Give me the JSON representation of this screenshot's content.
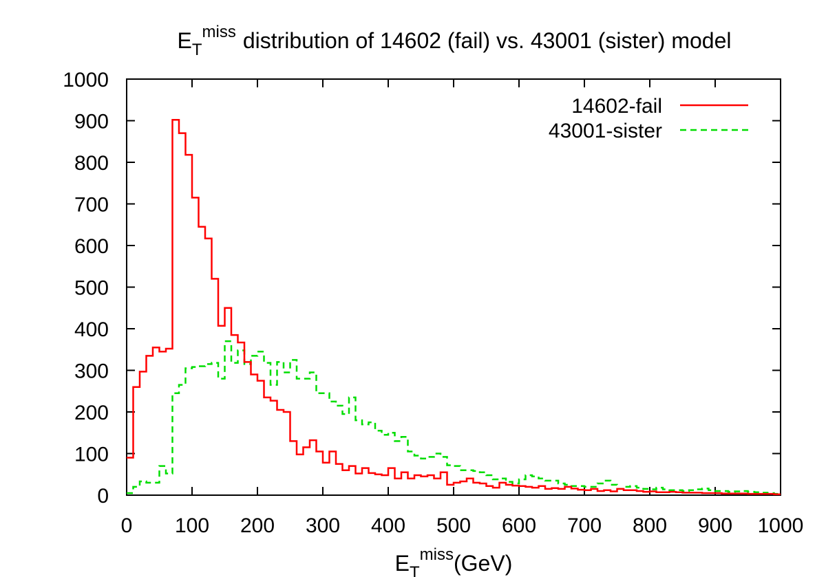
{
  "chart_data": {
    "type": "line",
    "title": {
      "symbol": "E",
      "subscript": "T",
      "superscript": "miss",
      "rest": "distribution of 14602 (fail) vs. 43001 (sister) model"
    },
    "xlabel": {
      "symbol": "E",
      "subscript": "T",
      "superscript": "miss",
      "rest": "(GeV)"
    },
    "ylabel": "",
    "xlim": [
      0,
      1000
    ],
    "ylim": [
      0,
      1000
    ],
    "xticks": [
      "0",
      "100",
      "200",
      "300",
      "400",
      "500",
      "600",
      "700",
      "800",
      "900",
      "1000"
    ],
    "yticks": [
      "0",
      "100",
      "200",
      "300",
      "400",
      "500",
      "600",
      "700",
      "800",
      "900",
      "1000"
    ],
    "grid": false,
    "legend_position": "top-right",
    "bin_width": 10,
    "series": [
      {
        "name": "14602-fail",
        "color": "#ff0000",
        "style": "solid",
        "values": [
          90,
          260,
          297,
          335,
          355,
          345,
          352,
          902,
          870,
          818,
          715,
          645,
          617,
          520,
          407,
          450,
          385,
          367,
          320,
          290,
          275,
          235,
          227,
          205,
          200,
          130,
          98,
          115,
          132,
          105,
          78,
          105,
          75,
          60,
          70,
          52,
          65,
          53,
          50,
          48,
          65,
          40,
          55,
          40,
          48,
          45,
          48,
          40,
          55,
          25,
          30,
          33,
          40,
          30,
          28,
          22,
          18,
          30,
          25,
          23,
          22,
          20,
          18,
          22,
          15,
          17,
          15,
          20,
          16,
          13,
          12,
          15,
          10,
          12,
          9,
          15,
          12,
          12,
          10,
          8,
          9,
          7,
          7,
          8,
          7,
          6,
          6,
          6,
          5,
          5,
          5,
          4,
          4,
          4,
          4,
          3,
          3,
          3,
          3,
          2
        ]
      },
      {
        "name": "43001-sister",
        "color": "#00dd00",
        "style": "dashed",
        "values": [
          5,
          20,
          33,
          30,
          30,
          70,
          52,
          245,
          265,
          305,
          308,
          310,
          315,
          318,
          280,
          370,
          318,
          348,
          315,
          335,
          345,
          318,
          265,
          320,
          295,
          325,
          280,
          280,
          295,
          245,
          245,
          225,
          215,
          195,
          235,
          180,
          170,
          175,
          155,
          145,
          150,
          130,
          140,
          105,
          95,
          88,
          92,
          100,
          92,
          72,
          70,
          60,
          60,
          58,
          55,
          48,
          38,
          40,
          32,
          28,
          38,
          48,
          45,
          40,
          35,
          35,
          28,
          25,
          22,
          22,
          20,
          20,
          28,
          35,
          25,
          15,
          20,
          22,
          18,
          15,
          14,
          18,
          14,
          12,
          12,
          10,
          12,
          14,
          16,
          12,
          10,
          10,
          8,
          9,
          10,
          8,
          7,
          6,
          5,
          3
        ]
      }
    ]
  }
}
